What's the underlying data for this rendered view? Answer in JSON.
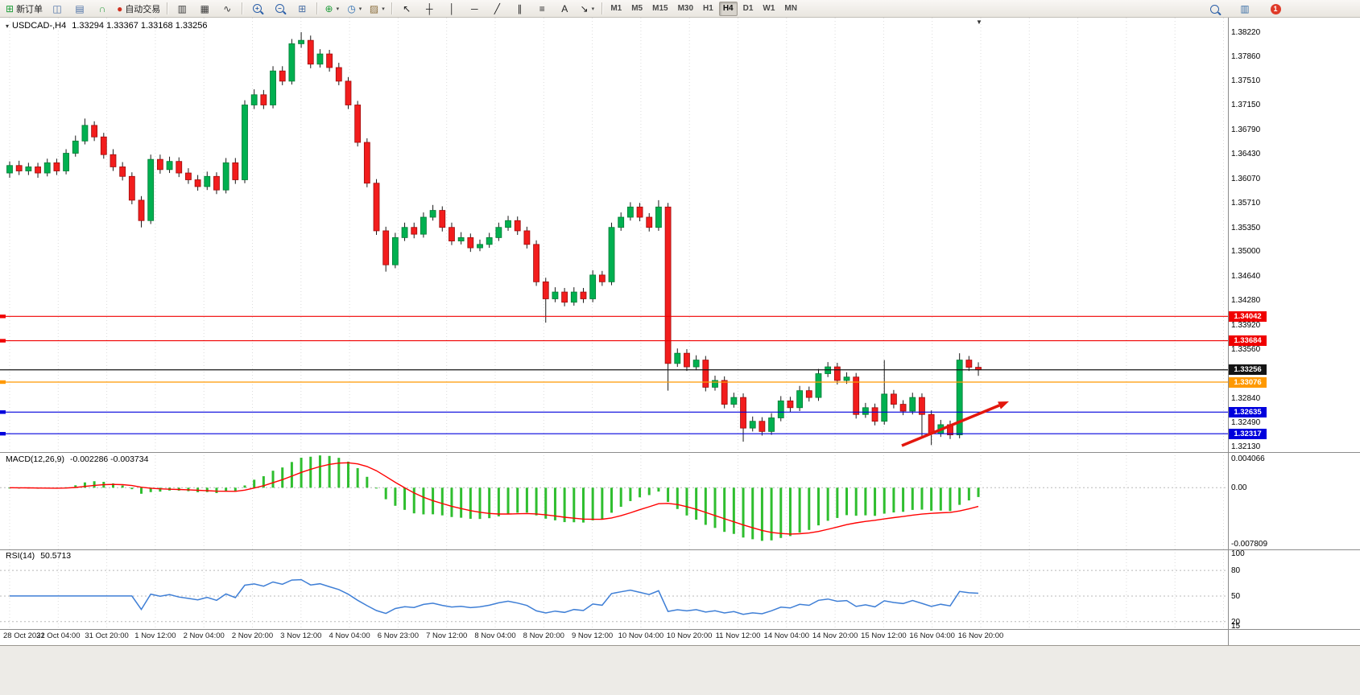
{
  "toolbar": {
    "groups": [
      {
        "name": "trading",
        "items": [
          {
            "name": "new-order-button",
            "glyph": "⊞",
            "glyph_color": "#1f9d3a",
            "label": "新订单"
          },
          {
            "name": "market-watch-icon",
            "glyph": "◫",
            "glyph_color": "#4a6fa5"
          },
          {
            "name": "data-window-icon",
            "glyph": "▤",
            "glyph_color": "#4a6fa5"
          },
          {
            "name": "sound-icon",
            "glyph": "∩",
            "glyph_color": "#2e9e3f"
          },
          {
            "name": "auto-trading-button",
            "glyph": "●",
            "glyph_color": "#d03020",
            "label": "自动交易"
          }
        ]
      },
      {
        "name": "chart-type",
        "items": [
          {
            "name": "bar-chart-icon",
            "glyph": "▥",
            "glyph_color": "#3c3c3c"
          },
          {
            "name": "candlestick-chart-icon",
            "glyph": "▦",
            "glyph_color": "#3c3c3c"
          },
          {
            "name": "line-chart-icon",
            "glyph": "∿",
            "glyph_color": "#3c3c3c"
          }
        ]
      },
      {
        "name": "zoom",
        "items": [
          {
            "name": "zoom-in-icon",
            "type": "magnifier",
            "sign": "+"
          },
          {
            "name": "zoom-out-icon",
            "type": "magnifier",
            "sign": "−"
          },
          {
            "name": "tile-windows-icon",
            "glyph": "⊞",
            "glyph_color": "#4a6fa5"
          }
        ]
      },
      {
        "name": "chart-tools",
        "items": [
          {
            "name": "indicators-button",
            "glyph": "⊕",
            "glyph_color": "#1f9d3a",
            "caret": true
          },
          {
            "name": "periods-button",
            "glyph": "◷",
            "glyph_color": "#2b6cb0",
            "caret": true
          },
          {
            "name": "templates-button",
            "glyph": "▨",
            "glyph_color": "#8a6d3b",
            "caret": true
          }
        ]
      },
      {
        "name": "objects",
        "items": [
          {
            "name": "cursor-icon",
            "glyph": "↖",
            "glyph_color": "#222222"
          },
          {
            "name": "crosshair-icon",
            "glyph": "┼",
            "glyph_color": "#222222"
          },
          {
            "name": "vertical-line-icon",
            "glyph": "│",
            "glyph_color": "#222222"
          },
          {
            "name": "horizontal-line-icon",
            "glyph": "─",
            "glyph_color": "#222222"
          },
          {
            "name": "trendline-icon",
            "glyph": "╱",
            "glyph_color": "#222222"
          },
          {
            "name": "channel-icon",
            "glyph": "∥",
            "glyph_color": "#222222"
          },
          {
            "name": "fibonacci-icon",
            "glyph": "≡",
            "glyph_color": "#222222"
          },
          {
            "name": "text-icon",
            "glyph": "A",
            "glyph_color": "#222222"
          },
          {
            "name": "arrows-icon",
            "glyph": "↘",
            "glyph_color": "#222222",
            "caret": true
          }
        ]
      }
    ],
    "timeframes": {
      "items": [
        "M1",
        "M5",
        "M15",
        "M30",
        "H1",
        "H4",
        "D1",
        "W1",
        "MN"
      ],
      "active": "H4"
    },
    "right_items": [
      {
        "name": "search-button",
        "type": "magnifier",
        "sign": ""
      },
      {
        "name": "chart-window-icon",
        "glyph": "▥",
        "glyph_color": "#3a6ea5"
      },
      {
        "name": "notification-badge",
        "type": "badge",
        "label": "1"
      }
    ]
  },
  "chart_data": {
    "type": "candlestick",
    "symbol_period": "USDCAD-,H4",
    "ohlc_text": "1.33294 1.33367 1.33168 1.33256",
    "ylim": [
      1.3213,
      1.3822
    ],
    "y_ticks": [
      "1.38220",
      "1.37860",
      "1.37510",
      "1.37150",
      "1.36790",
      "1.36430",
      "1.36070",
      "1.35710",
      "1.35350",
      "1.35000",
      "1.34640",
      "1.34280",
      "1.33920",
      "1.33560",
      "1.32840",
      "1.32490",
      "1.32130"
    ],
    "x_labels": [
      "28 Oct 2022",
      "31 Oct 04:00",
      "31 Oct 20:00",
      "1 Nov 12:00",
      "2 Nov 04:00",
      "2 Nov 20:00",
      "3 Nov 12:00",
      "4 Nov 04:00",
      "6 Nov 23:00",
      "7 Nov 12:00",
      "8 Nov 04:00",
      "8 Nov 20:00",
      "9 Nov 12:00",
      "10 Nov 04:00",
      "10 Nov 20:00",
      "11 Nov 12:00",
      "14 Nov 04:00",
      "14 Nov 20:00",
      "15 Nov 12:00",
      "16 Nov 04:00",
      "16 Nov 20:00"
    ],
    "candles": [
      [
        1.3615,
        1.3632,
        1.3608,
        1.3626
      ],
      [
        1.3626,
        1.3633,
        1.3612,
        1.3618
      ],
      [
        1.3618,
        1.363,
        1.3612,
        1.3624
      ],
      [
        1.3624,
        1.363,
        1.3608,
        1.3615
      ],
      [
        1.3615,
        1.3636,
        1.361,
        1.363
      ],
      [
        1.363,
        1.3636,
        1.3612,
        1.3618
      ],
      [
        1.3618,
        1.365,
        1.3613,
        1.3644
      ],
      [
        1.3644,
        1.367,
        1.3639,
        1.3662
      ],
      [
        1.3662,
        1.3695,
        1.3657,
        1.3685
      ],
      [
        1.3685,
        1.3691,
        1.3662,
        1.3668
      ],
      [
        1.3668,
        1.3674,
        1.3636,
        1.3642
      ],
      [
        1.3642,
        1.365,
        1.3618,
        1.3624
      ],
      [
        1.3624,
        1.3631,
        1.3604,
        1.361
      ],
      [
        1.361,
        1.3616,
        1.3569,
        1.3575
      ],
      [
        1.3575,
        1.3581,
        1.3535,
        1.3545
      ],
      [
        1.3545,
        1.3642,
        1.354,
        1.3635
      ],
      [
        1.3635,
        1.3642,
        1.3614,
        1.362
      ],
      [
        1.362,
        1.3639,
        1.3615,
        1.3632
      ],
      [
        1.3632,
        1.3638,
        1.3609,
        1.3615
      ],
      [
        1.3615,
        1.3622,
        1.3599,
        1.3605
      ],
      [
        1.3605,
        1.3612,
        1.3589,
        1.3595
      ],
      [
        1.3595,
        1.3617,
        1.359,
        1.361
      ],
      [
        1.361,
        1.3616,
        1.3584,
        1.359
      ],
      [
        1.359,
        1.3637,
        1.3585,
        1.363
      ],
      [
        1.363,
        1.3637,
        1.3599,
        1.3605
      ],
      [
        1.3605,
        1.3722,
        1.36,
        1.3715
      ],
      [
        1.3715,
        1.3738,
        1.3709,
        1.373
      ],
      [
        1.373,
        1.3737,
        1.3709,
        1.3715
      ],
      [
        1.3715,
        1.3772,
        1.371,
        1.3765
      ],
      [
        1.3765,
        1.3772,
        1.3744,
        1.375
      ],
      [
        1.375,
        1.3812,
        1.3745,
        1.3805
      ],
      [
        1.3805,
        1.3822,
        1.3799,
        1.381
      ],
      [
        1.381,
        1.3817,
        1.3769,
        1.3775
      ],
      [
        1.3775,
        1.3797,
        1.377,
        1.379
      ],
      [
        1.379,
        1.3796,
        1.3764,
        1.377
      ],
      [
        1.377,
        1.3777,
        1.3744,
        1.375
      ],
      [
        1.375,
        1.3756,
        1.3709,
        1.3715
      ],
      [
        1.3715,
        1.3721,
        1.3654,
        1.366
      ],
      [
        1.366,
        1.3666,
        1.3594,
        1.36
      ],
      [
        1.36,
        1.3606,
        1.3524,
        1.353
      ],
      [
        1.353,
        1.3536,
        1.347,
        1.348
      ],
      [
        1.348,
        1.3527,
        1.3475,
        1.352
      ],
      [
        1.352,
        1.3542,
        1.3515,
        1.3535
      ],
      [
        1.3535,
        1.3542,
        1.3519,
        1.3525
      ],
      [
        1.3525,
        1.3557,
        1.352,
        1.355
      ],
      [
        1.355,
        1.3568,
        1.3545,
        1.356
      ],
      [
        1.356,
        1.3566,
        1.3529,
        1.3535
      ],
      [
        1.3535,
        1.3542,
        1.3509,
        1.3515
      ],
      [
        1.3515,
        1.3528,
        1.351,
        1.352
      ],
      [
        1.352,
        1.3526,
        1.3499,
        1.3505
      ],
      [
        1.3505,
        1.3517,
        1.35,
        1.351
      ],
      [
        1.351,
        1.3527,
        1.3505,
        1.352
      ],
      [
        1.352,
        1.3542,
        1.3515,
        1.3535
      ],
      [
        1.3535,
        1.3552,
        1.353,
        1.3545
      ],
      [
        1.3545,
        1.3551,
        1.3524,
        1.353
      ],
      [
        1.353,
        1.3536,
        1.3504,
        1.351
      ],
      [
        1.351,
        1.3516,
        1.3449,
        1.3455
      ],
      [
        1.3455,
        1.3461,
        1.3395,
        1.343
      ],
      [
        1.343,
        1.3447,
        1.3425,
        1.344
      ],
      [
        1.344,
        1.3446,
        1.3419,
        1.3425
      ],
      [
        1.3425,
        1.3447,
        1.342,
        1.344
      ],
      [
        1.344,
        1.3446,
        1.3424,
        1.343
      ],
      [
        1.343,
        1.3472,
        1.3425,
        1.3465
      ],
      [
        1.3465,
        1.3471,
        1.3449,
        1.3455
      ],
      [
        1.3455,
        1.3542,
        1.345,
        1.3535
      ],
      [
        1.3535,
        1.3557,
        1.353,
        1.355
      ],
      [
        1.355,
        1.3572,
        1.3545,
        1.3565
      ],
      [
        1.3565,
        1.3571,
        1.3544,
        1.355
      ],
      [
        1.355,
        1.3556,
        1.3529,
        1.3535
      ],
      [
        1.3535,
        1.3575,
        1.353,
        1.3565
      ],
      [
        1.3565,
        1.3571,
        1.3295,
        1.3335
      ],
      [
        1.3335,
        1.3357,
        1.333,
        1.335
      ],
      [
        1.335,
        1.3356,
        1.3324,
        1.333
      ],
      [
        1.333,
        1.3347,
        1.3325,
        1.334
      ],
      [
        1.334,
        1.3346,
        1.3294,
        1.33
      ],
      [
        1.33,
        1.3317,
        1.3295,
        1.331
      ],
      [
        1.331,
        1.3316,
        1.3269,
        1.3275
      ],
      [
        1.3275,
        1.3292,
        1.327,
        1.3285
      ],
      [
        1.3285,
        1.3291,
        1.322,
        1.324
      ],
      [
        1.324,
        1.3257,
        1.3235,
        1.325
      ],
      [
        1.325,
        1.3256,
        1.3229,
        1.3235
      ],
      [
        1.3235,
        1.3262,
        1.323,
        1.3255
      ],
      [
        1.3255,
        1.3287,
        1.325,
        1.328
      ],
      [
        1.328,
        1.3286,
        1.3264,
        1.327
      ],
      [
        1.327,
        1.3302,
        1.3265,
        1.3295
      ],
      [
        1.3295,
        1.3301,
        1.3279,
        1.3285
      ],
      [
        1.3285,
        1.3327,
        1.328,
        1.332
      ],
      [
        1.332,
        1.3337,
        1.3315,
        1.333
      ],
      [
        1.333,
        1.3336,
        1.3304,
        1.331
      ],
      [
        1.331,
        1.3322,
        1.3305,
        1.3315
      ],
      [
        1.3315,
        1.3321,
        1.3254,
        1.326
      ],
      [
        1.326,
        1.3277,
        1.3255,
        1.327
      ],
      [
        1.327,
        1.3276,
        1.3244,
        1.325
      ],
      [
        1.325,
        1.334,
        1.3245,
        1.329
      ],
      [
        1.329,
        1.3296,
        1.3269,
        1.3275
      ],
      [
        1.3275,
        1.3281,
        1.3259,
        1.3265
      ],
      [
        1.3265,
        1.3292,
        1.326,
        1.3285
      ],
      [
        1.3285,
        1.3291,
        1.3227,
        1.326
      ],
      [
        1.326,
        1.3266,
        1.3215,
        1.3232
      ],
      [
        1.3232,
        1.3252,
        1.3227,
        1.3245
      ],
      [
        1.3245,
        1.3251,
        1.3224,
        1.323
      ],
      [
        1.323,
        1.335,
        1.3225,
        1.334
      ],
      [
        1.334,
        1.3346,
        1.3324,
        1.33294
      ],
      [
        1.33294,
        1.33367,
        1.33168,
        1.33256
      ]
    ],
    "levels": [
      {
        "label": "1.34042",
        "value": 1.34042,
        "color": "#f00000"
      },
      {
        "label": "1.33684",
        "value": 1.33684,
        "color": "#f00000"
      },
      {
        "label": "1.33076",
        "value": 1.33076,
        "color": "#ff9900"
      },
      {
        "label": "1.32635",
        "value": 1.32635,
        "color": "#0000dd"
      },
      {
        "label": "1.32317",
        "value": 1.32317,
        "color": "#0000dd"
      }
    ],
    "current_price": {
      "label": "1.33256",
      "value": 1.33256,
      "color": "#141414"
    },
    "annotation": {
      "type": "arrow",
      "direction": "up-right",
      "color": "#e3170d"
    },
    "colors": {
      "up": "#00b050",
      "up_border": "#007a33",
      "down": "#f21d1d",
      "down_border": "#9e0b0b",
      "wick": "#1a1a1a",
      "grid": "#dcdcdc"
    },
    "indicators": [
      {
        "type": "MACD",
        "label": "MACD(12,26,9)",
        "values_text": "-0.002286 -0.003734",
        "axis_labels": [
          "0.004066",
          "0.00",
          "-0.007809"
        ],
        "ylim": [
          -0.007809,
          0.004066
        ],
        "histogram_color": "#2fbe2f",
        "signal_color": "#ff0000"
      },
      {
        "type": "RSI",
        "label": "RSI(14)",
        "values_text": "50.5713",
        "axis_labels": [
          "100",
          "80",
          "50",
          "20",
          "15"
        ],
        "levels": [
          80,
          50,
          20
        ],
        "ylim": [
          15,
          100
        ],
        "line_color": "#3f7fd6"
      }
    ]
  }
}
